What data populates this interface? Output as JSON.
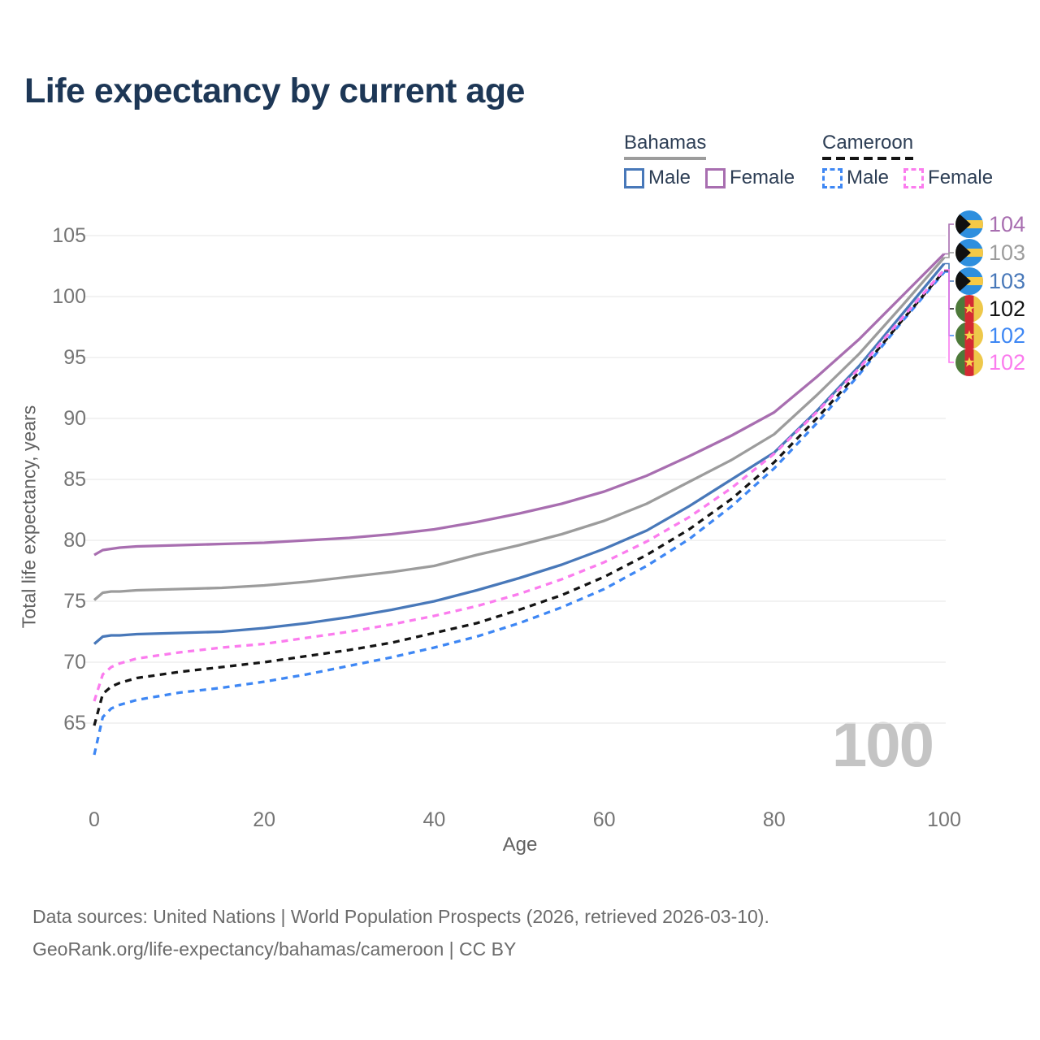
{
  "header": {
    "title": "Life expectancy by current age"
  },
  "legend": {
    "groups": [
      {
        "label": "Bahamas",
        "style": "solid",
        "underline_color": "#9c9c9c",
        "items": [
          {
            "label": "Male",
            "color": "#4878b9",
            "dash": false
          },
          {
            "label": "Female",
            "color": "#a86eb0",
            "dash": false
          }
        ]
      },
      {
        "label": "Cameroon",
        "style": "dashed",
        "underline_color": "#141414",
        "items": [
          {
            "label": "Male",
            "color": "#3e87f4",
            "dash": true
          },
          {
            "label": "Female",
            "color": "#fb7cee",
            "dash": true
          }
        ]
      }
    ]
  },
  "chart_data": {
    "type": "line",
    "title": "Life expectancy by current age",
    "xlabel": "Age",
    "ylabel": "Total life expectancy, years",
    "xlim": [
      0,
      100
    ],
    "ylim": [
      62,
      106
    ],
    "xticks": [
      0,
      20,
      40,
      60,
      80,
      100
    ],
    "yticks": [
      65,
      70,
      75,
      80,
      85,
      90,
      95,
      100,
      105
    ],
    "grid": "horizontal",
    "legend_position": "top-right",
    "watermark": "100",
    "ages": [
      0,
      1,
      2,
      3,
      5,
      10,
      15,
      20,
      25,
      30,
      35,
      40,
      45,
      50,
      55,
      60,
      65,
      70,
      75,
      80,
      85,
      90,
      95,
      100
    ],
    "series": [
      {
        "name": "Bahamas Female",
        "country": "Bahamas",
        "sex": "Female",
        "color": "#a86eb0",
        "dash": false,
        "end_label": "104",
        "flag": "bahamas",
        "values": [
          78.8,
          79.2,
          79.3,
          79.4,
          79.5,
          79.6,
          79.7,
          79.8,
          80.0,
          80.2,
          80.5,
          80.9,
          81.5,
          82.2,
          83.0,
          84.0,
          85.3,
          86.9,
          88.6,
          90.5,
          93.4,
          96.5,
          100.0,
          103.5
        ]
      },
      {
        "name": "Bahamas Both sexes",
        "country": "Bahamas",
        "sex": "Both",
        "color": "#9c9c9c",
        "dash": false,
        "end_label": "103",
        "flag": "bahamas",
        "values": [
          75.1,
          75.7,
          75.8,
          75.8,
          75.9,
          76.0,
          76.1,
          76.3,
          76.6,
          77.0,
          77.4,
          77.9,
          78.8,
          79.6,
          80.5,
          81.6,
          83.0,
          84.8,
          86.6,
          88.7,
          91.9,
          95.3,
          99.2,
          103.2
        ]
      },
      {
        "name": "Bahamas Male",
        "country": "Bahamas",
        "sex": "Male",
        "color": "#4878b9",
        "dash": false,
        "end_label": "103",
        "flag": "bahamas",
        "values": [
          71.5,
          72.1,
          72.2,
          72.2,
          72.3,
          72.4,
          72.5,
          72.8,
          73.2,
          73.7,
          74.3,
          75.0,
          75.9,
          76.9,
          78.0,
          79.3,
          80.8,
          82.8,
          85.0,
          87.2,
          90.6,
          94.3,
          98.5,
          102.7
        ]
      },
      {
        "name": "Cameroon Both sexes",
        "country": "Cameroon",
        "sex": "Both",
        "color": "#141414",
        "dash": true,
        "end_label": "102",
        "flag": "cameroon",
        "values": [
          64.8,
          67.4,
          68.0,
          68.3,
          68.7,
          69.2,
          69.6,
          70.0,
          70.5,
          71.0,
          71.6,
          72.4,
          73.2,
          74.3,
          75.5,
          77.0,
          78.8,
          80.9,
          83.4,
          86.4,
          90.0,
          93.8,
          98.0,
          102.1
        ]
      },
      {
        "name": "Cameroon Male",
        "country": "Cameroon",
        "sex": "Male",
        "color": "#3e87f4",
        "dash": true,
        "end_label": "102",
        "flag": "cameroon",
        "values": [
          62.4,
          65.5,
          66.2,
          66.5,
          66.9,
          67.5,
          67.9,
          68.4,
          69.0,
          69.7,
          70.4,
          71.2,
          72.1,
          73.2,
          74.5,
          76.0,
          77.9,
          80.1,
          82.8,
          85.9,
          89.6,
          93.6,
          97.9,
          102.0
        ]
      },
      {
        "name": "Cameroon Female",
        "country": "Cameroon",
        "sex": "Female",
        "color": "#fb7cee",
        "dash": true,
        "end_label": "102",
        "flag": "cameroon",
        "values": [
          66.8,
          69.0,
          69.6,
          69.9,
          70.3,
          70.8,
          71.2,
          71.5,
          72.0,
          72.5,
          73.1,
          73.8,
          74.6,
          75.6,
          76.8,
          78.2,
          79.9,
          81.9,
          84.3,
          87.1,
          90.5,
          94.1,
          98.2,
          102.2
        ]
      }
    ]
  },
  "flags": {
    "bahamas": {
      "blue": "#2e8fde",
      "gold": "#f6c945",
      "black": "#101010"
    },
    "cameroon": {
      "green": "#4d7a3a",
      "red": "#d42a33",
      "yellow": "#eec84a",
      "star": "#f8d44c"
    }
  },
  "footer": {
    "line1": "Data sources: United Nations | World Population Prospects (2026, retrieved 2026-03-10).",
    "line2": "GeoRank.org/life-expectancy/bahamas/cameroon | CC BY"
  }
}
